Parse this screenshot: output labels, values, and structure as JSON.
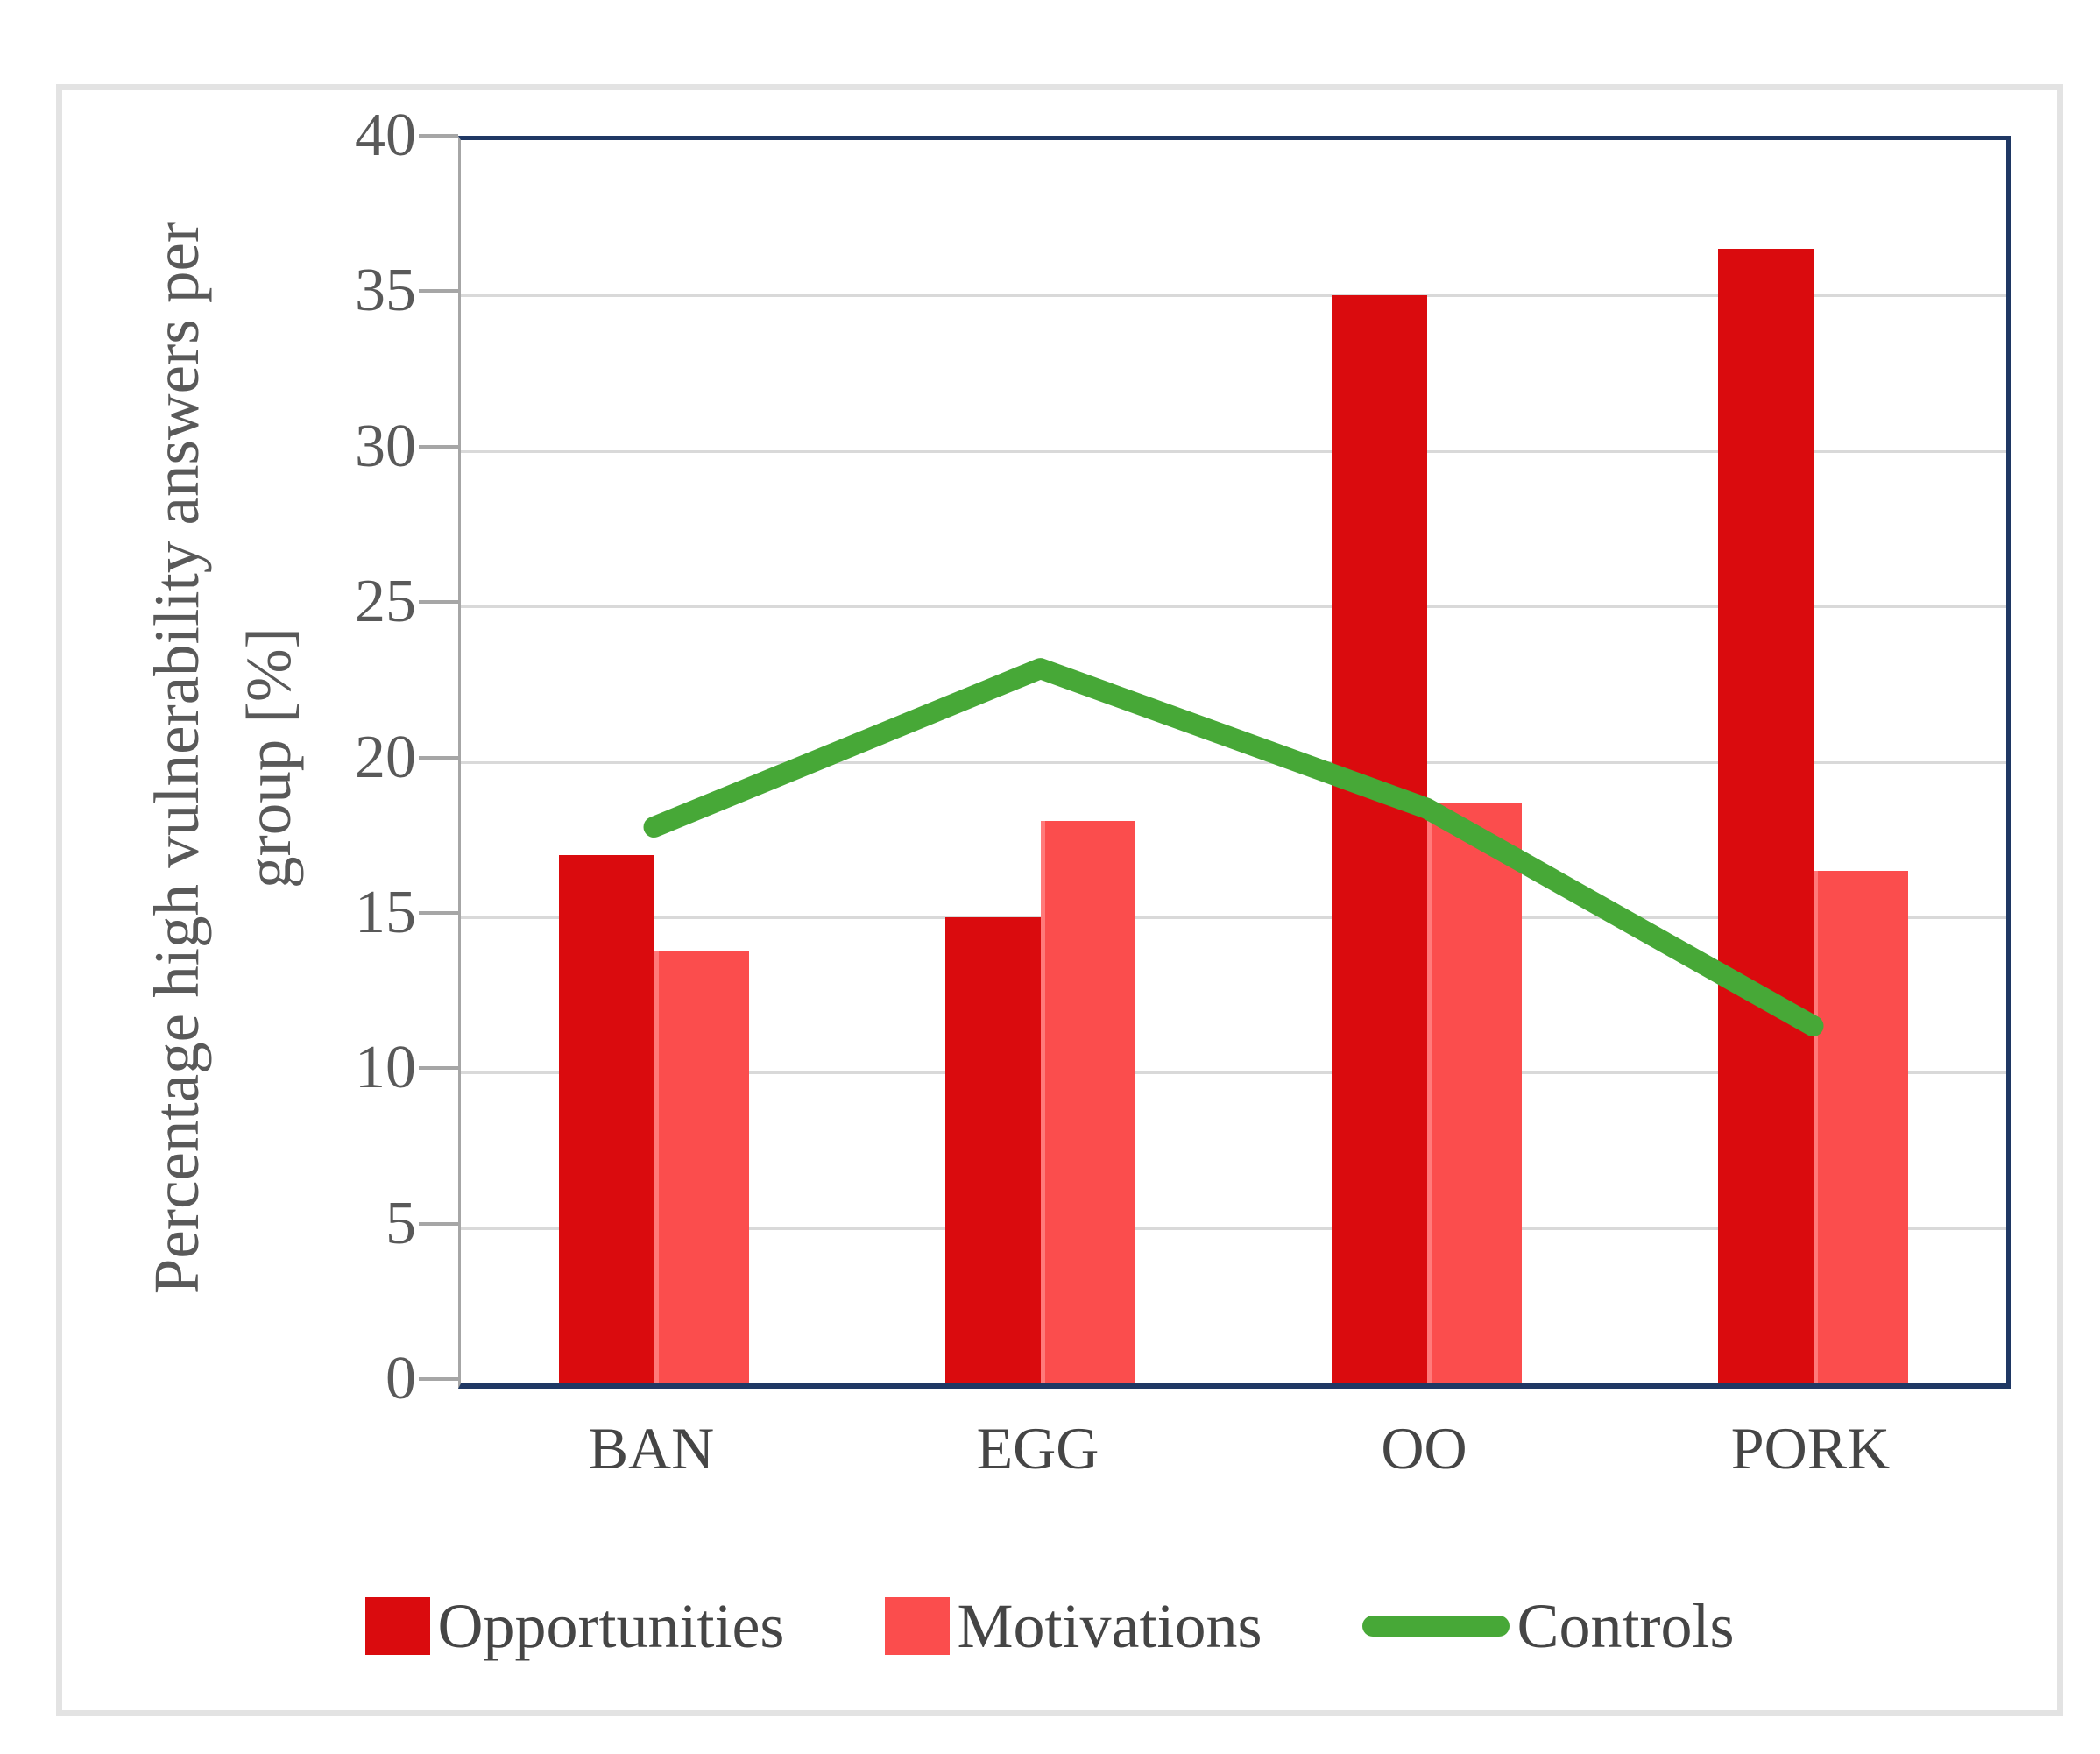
{
  "figure": {
    "background": "#ffffff",
    "frame_color": "#e3e3e3"
  },
  "chart_data": {
    "type": "bar",
    "subtype": "clustered-bars-with-line-overlay",
    "categories": [
      "BAN",
      "EGG",
      "OO",
      "PORK"
    ],
    "series": [
      {
        "name": "Opportunities",
        "type": "bar",
        "color": "#da0b0e",
        "values": [
          17,
          15,
          35,
          36.5
        ]
      },
      {
        "name": "Motivations",
        "type": "bar",
        "color": "#fb4d4d",
        "edge_highlight": "#ff7a7a",
        "values": [
          13.9,
          18.1,
          18.7,
          16.5
        ]
      },
      {
        "name": "Controls",
        "type": "line",
        "color": "#47a837",
        "line_width": 24,
        "values": [
          17.9,
          23,
          18.5,
          11.5
        ]
      }
    ],
    "title": "",
    "xlabel": "",
    "ylabel_lines": [
      "Percentage high vulnerability answers per",
      "group [%]"
    ],
    "ylim": [
      0,
      40
    ],
    "yticks": [
      0,
      5,
      10,
      15,
      20,
      25,
      30,
      35,
      40
    ],
    "grid": true,
    "legend_position": "bottom"
  },
  "colors": {
    "plot_border": "#1f3864",
    "axis_line": "#a6a6a6",
    "gridline": "#d9d9d9",
    "tick_label": "#595959",
    "axis_title": "#595959",
    "category_label": "#454545",
    "legend_label": "#454545"
  }
}
